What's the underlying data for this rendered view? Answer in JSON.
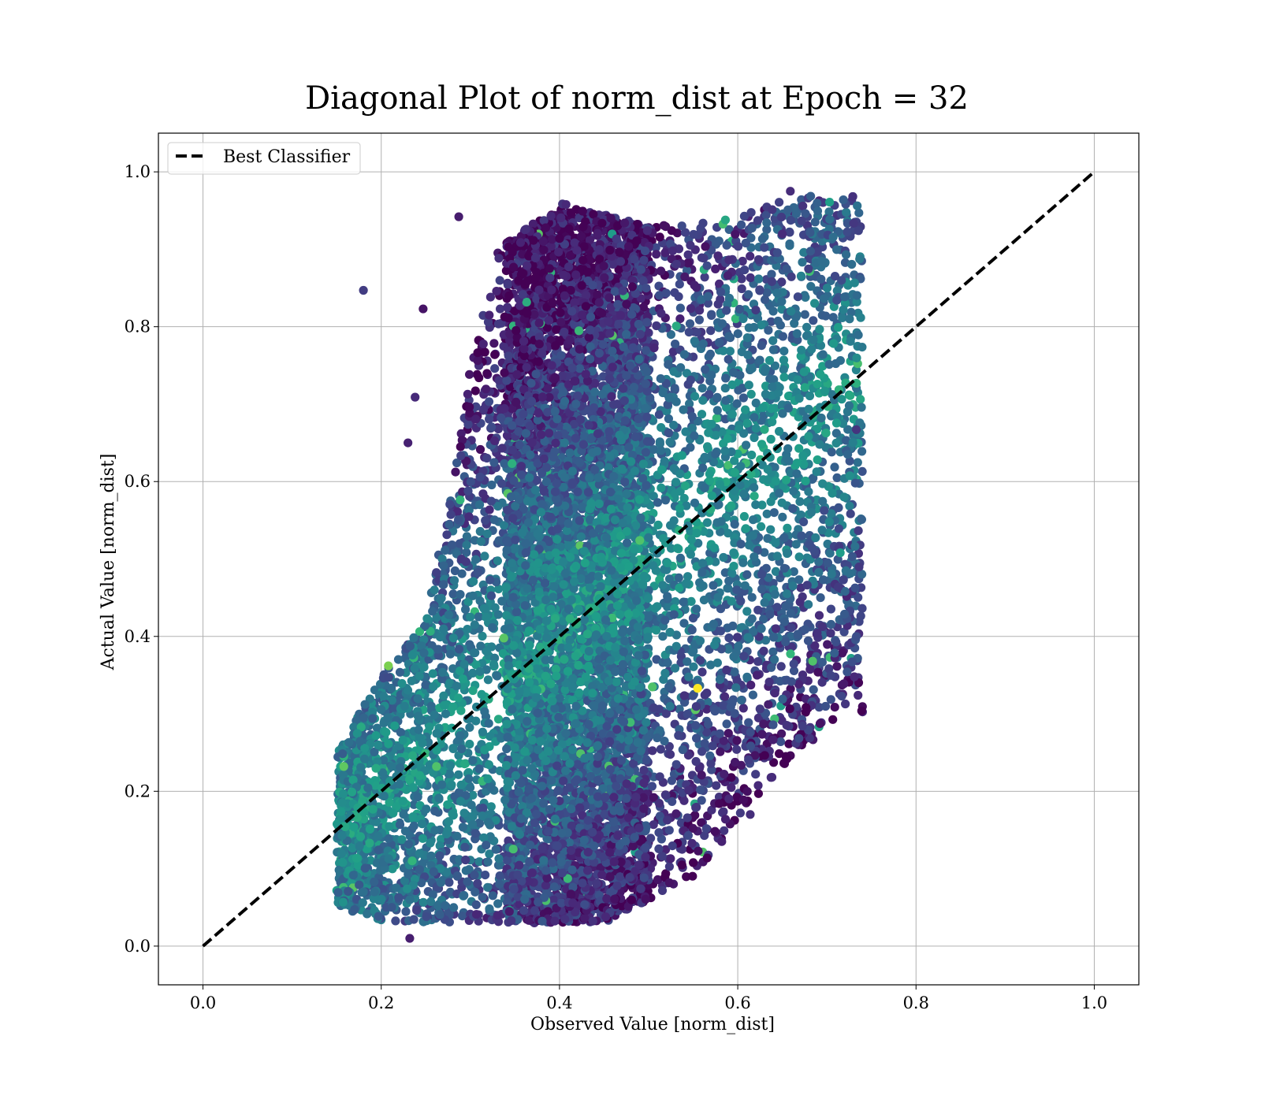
{
  "chart_data": {
    "type": "scatter",
    "title": "Diagonal Plot of norm_dist at Epoch = 32",
    "xlabel": "Observed Value [norm_dist]",
    "ylabel": "Actual Value [norm_dist]",
    "xlim": [
      -0.05,
      1.05
    ],
    "ylim": [
      -0.05,
      1.05
    ],
    "xticks": [
      "0.0",
      "0.2",
      "0.4",
      "0.6",
      "0.8",
      "1.0"
    ],
    "yticks": [
      "0.0",
      "0.2",
      "0.4",
      "0.6",
      "0.8",
      "1.0"
    ],
    "grid": true,
    "legend": {
      "position": "top-left",
      "entries": [
        "Best Classifier"
      ]
    },
    "colormap": "viridis",
    "colors": {
      "line": "#000000",
      "grid": "#b0b0b0",
      "viridis_low": "#440154",
      "viridis_mid": "#21918c",
      "viridis_high": "#fde725"
    },
    "series": [
      {
        "name": "Best Classifier",
        "kind": "line",
        "style": "dashed",
        "x": [
          0.0,
          1.0
        ],
        "y": [
          0.0,
          1.0
        ]
      },
      {
        "kind": "scatter",
        "density": "dense cloud, ~15000 points",
        "x_range": [
          0.15,
          0.74
        ],
        "y_range": [
          0.01,
          0.97
        ],
        "lower_boundary": [
          [
            0.15,
            0.05
          ],
          [
            0.2,
            0.03
          ],
          [
            0.3,
            0.03
          ],
          [
            0.4,
            0.03
          ],
          [
            0.45,
            0.03
          ],
          [
            0.5,
            0.06
          ],
          [
            0.55,
            0.09
          ],
          [
            0.6,
            0.16
          ],
          [
            0.65,
            0.23
          ],
          [
            0.7,
            0.28
          ],
          [
            0.72,
            0.3
          ]
        ],
        "upper_boundary": [
          [
            0.15,
            0.25
          ],
          [
            0.2,
            0.35
          ],
          [
            0.25,
            0.42
          ],
          [
            0.28,
            0.6
          ],
          [
            0.3,
            0.75
          ],
          [
            0.33,
            0.9
          ],
          [
            0.4,
            0.96
          ],
          [
            0.5,
            0.93
          ],
          [
            0.6,
            0.94
          ],
          [
            0.66,
            0.97
          ],
          [
            0.72,
            0.97
          ]
        ],
        "outliers": [
          {
            "x": 0.18,
            "y": 0.847
          },
          {
            "x": 0.232,
            "y": 0.01
          },
          {
            "x": 0.287,
            "y": 0.942
          },
          {
            "x": 0.247,
            "y": 0.823
          },
          {
            "x": 0.238,
            "y": 0.709
          },
          {
            "x": 0.23,
            "y": 0.65
          },
          {
            "x": 0.614,
            "y": 0.17
          },
          {
            "x": 0.659,
            "y": 0.975
          },
          {
            "x": 0.729,
            "y": 0.968
          },
          {
            "x": 0.733,
            "y": 0.667
          }
        ],
        "highlights": [
          {
            "x": 0.567,
            "y": 0.663,
            "c": 0.5
          },
          {
            "x": 0.555,
            "y": 0.333,
            "c": 1.0
          },
          {
            "x": 0.715,
            "y": 0.508,
            "c": 0.55
          },
          {
            "x": 0.208,
            "y": 0.362,
            "c": 0.8
          },
          {
            "x": 0.158,
            "y": 0.232,
            "c": 0.75
          },
          {
            "x": 0.49,
            "y": 0.524,
            "c": 0.72
          },
          {
            "x": 0.684,
            "y": 0.368,
            "c": 0.72
          },
          {
            "x": 0.262,
            "y": 0.232,
            "c": 0.72
          },
          {
            "x": 0.187,
            "y": 0.133,
            "c": 0.6
          }
        ]
      }
    ]
  }
}
